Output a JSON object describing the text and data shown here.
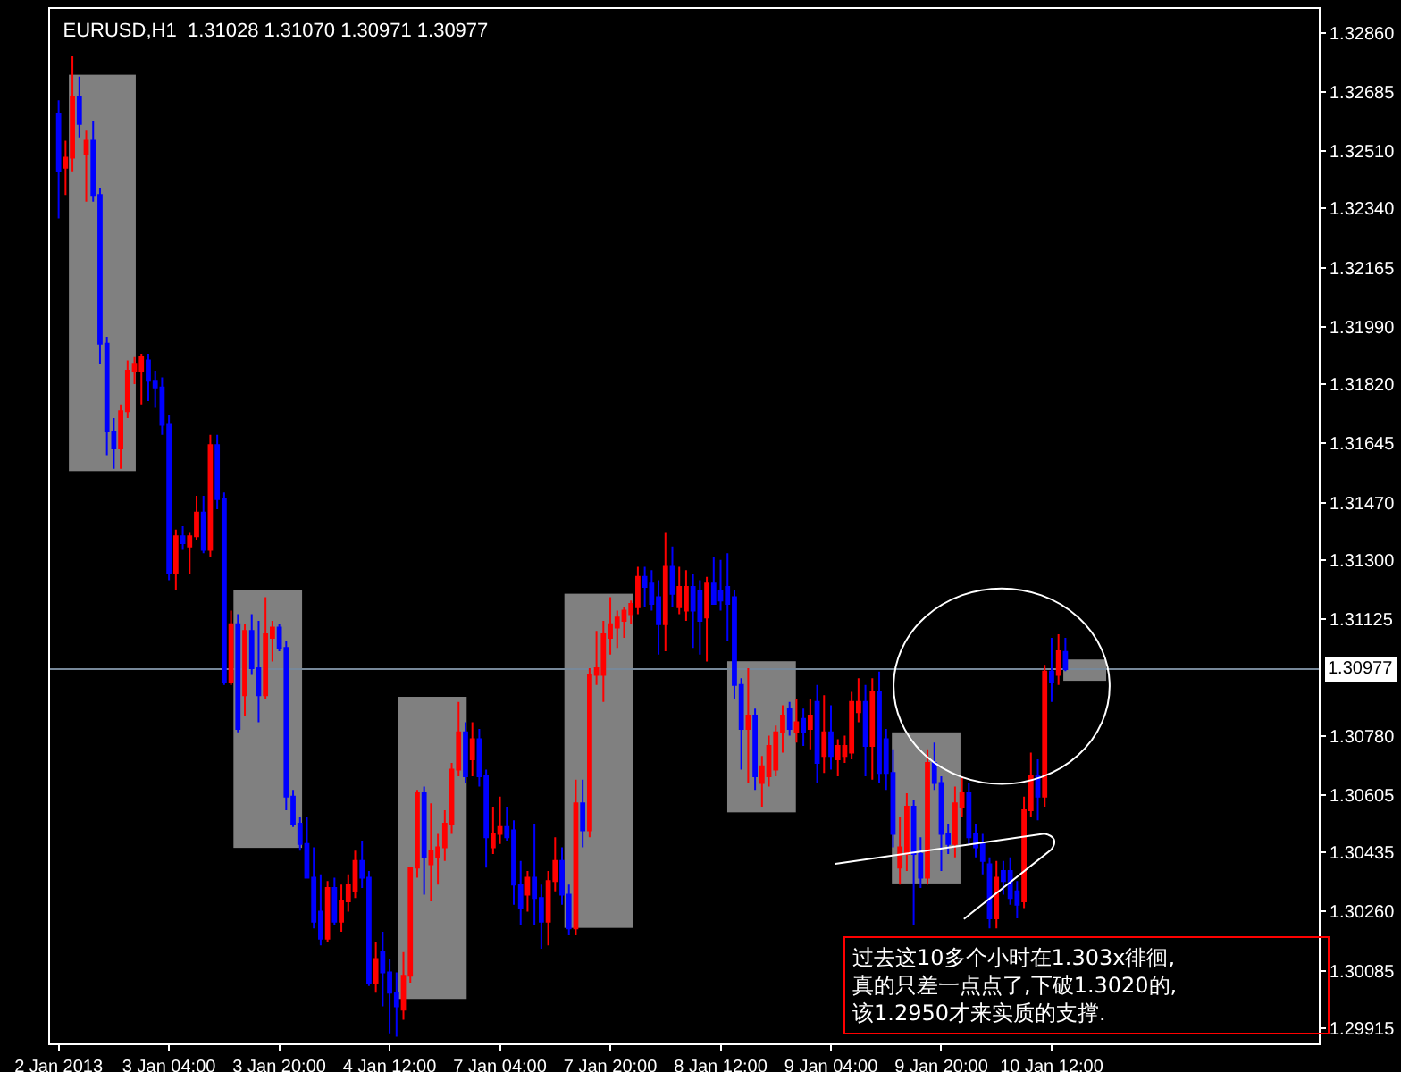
{
  "chart_data": {
    "type": "candlestick",
    "title": "EURUSD,H1  1.31028 1.31070 1.30971 1.30977",
    "categories": [
      "2 Jan 2013",
      null,
      null,
      null,
      null,
      null,
      null,
      null,
      null,
      null,
      null,
      null,
      null,
      null,
      null,
      null,
      "3 Jan 04:00",
      null,
      null,
      null,
      null,
      null,
      null,
      null,
      null,
      null,
      null,
      null,
      null,
      null,
      null,
      null,
      "3 Jan 20:00",
      null,
      null,
      null,
      null,
      null,
      null,
      null,
      null,
      null,
      null,
      null,
      null,
      null,
      null,
      null,
      "4 Jan 12:00",
      null,
      null,
      null,
      null,
      null,
      null,
      null,
      null,
      null,
      null,
      null,
      null,
      null,
      null,
      null,
      "7 Jan 04:00",
      null,
      null,
      null,
      null,
      null,
      null,
      null,
      null,
      null,
      null,
      null,
      null,
      null,
      null,
      null,
      "7 Jan 20:00",
      null,
      null,
      null,
      null,
      null,
      null,
      null,
      null,
      null,
      null,
      null,
      null,
      null,
      null,
      null,
      "8 Jan 12:00",
      null,
      null,
      null,
      null,
      null,
      null,
      null,
      null,
      null,
      null,
      null,
      null,
      null,
      null,
      null,
      "9 Jan 04:00",
      null,
      null,
      null,
      null,
      null,
      null,
      null,
      null,
      null,
      null,
      null,
      null,
      null,
      null,
      null,
      "9 Jan 20:00",
      null,
      null,
      null,
      null,
      null,
      null,
      null,
      null,
      null,
      null,
      null,
      null,
      null,
      null,
      null,
      "10 Jan 12:00",
      null,
      null,
      null,
      null,
      null,
      null,
      null,
      null,
      null,
      null,
      null,
      null,
      null,
      null,
      null,
      null,
      null,
      null,
      null,
      null,
      null,
      null,
      null,
      null,
      null,
      null,
      null,
      null,
      null,
      null,
      null,
      null,
      null,
      null,
      null,
      null,
      null,
      null
    ],
    "ohlc": [
      [
        1.3262,
        1.3266,
        1.3231,
        1.3245
      ],
      [
        1.3246,
        1.3254,
        1.3238,
        1.3249
      ],
      [
        1.3249,
        1.3279,
        1.3245,
        1.3267
      ],
      [
        1.3267,
        1.3273,
        1.3255,
        1.3259
      ],
      [
        1.325,
        1.3257,
        1.3236,
        1.3254
      ],
      [
        1.3254,
        1.326,
        1.3236,
        1.3238
      ],
      [
        1.3238,
        1.324,
        1.3188,
        1.3194
      ],
      [
        1.3194,
        1.3196,
        1.3161,
        1.3168
      ],
      [
        1.3168,
        1.3172,
        1.3157,
        1.3163
      ],
      [
        1.3163,
        1.3176,
        1.3157,
        1.3174
      ],
      [
        1.3174,
        1.3189,
        1.3172,
        1.3186
      ],
      [
        1.3186,
        1.319,
        1.3182,
        1.3188
      ],
      [
        1.3186,
        1.3191,
        1.3176,
        1.319
      ],
      [
        1.3189,
        1.3191,
        1.3177,
        1.3183
      ],
      [
        1.3183,
        1.3186,
        1.3175,
        1.3181
      ],
      [
        1.3181,
        1.3184,
        1.3167,
        1.317
      ],
      [
        1.317,
        1.3173,
        1.3124,
        1.3126
      ],
      [
        1.3126,
        1.3139,
        1.3121,
        1.3137
      ],
      [
        1.3137,
        1.314,
        1.3133,
        1.3135
      ],
      [
        1.3134,
        1.3138,
        1.3126,
        1.3137
      ],
      [
        1.3137,
        1.3149,
        1.3136,
        1.3144
      ],
      [
        1.3144,
        1.3149,
        1.3132,
        1.3133
      ],
      [
        1.3133,
        1.3167,
        1.3131,
        1.3164
      ],
      [
        1.3164,
        1.3167,
        1.3145,
        1.3148
      ],
      [
        1.3148,
        1.315,
        1.3093,
        1.3094
      ],
      [
        1.3094,
        1.3115,
        1.3093,
        1.3111
      ],
      [
        1.3111,
        1.3114,
        1.3079,
        1.308
      ],
      [
        1.309,
        1.3111,
        1.3084,
        1.3109
      ],
      [
        1.3109,
        1.3114,
        1.3096,
        1.3098
      ],
      [
        1.3098,
        1.3112,
        1.3082,
        1.309
      ],
      [
        1.309,
        1.3119,
        1.3089,
        1.3108
      ],
      [
        1.3107,
        1.3112,
        1.31,
        1.311
      ],
      [
        1.311,
        1.3111,
        1.3103,
        1.3104
      ],
      [
        1.3104,
        1.3106,
        1.3056,
        1.306
      ],
      [
        1.306,
        1.3062,
        1.3051,
        1.3052
      ],
      [
        1.3052,
        1.3054,
        1.3044,
        1.3046
      ],
      [
        1.3046,
        1.3054,
        1.3036,
        1.3036
      ],
      [
        1.3036,
        1.3045,
        1.3021,
        1.3023
      ],
      [
        1.3026,
        1.3037,
        1.3016,
        1.3018
      ],
      [
        1.3018,
        1.3035,
        1.3017,
        1.3033
      ],
      [
        1.3033,
        1.3036,
        1.3022,
        1.3023
      ],
      [
        1.3023,
        1.3034,
        1.302,
        1.3029
      ],
      [
        1.3029,
        1.3037,
        1.3026,
        1.3034
      ],
      [
        1.3032,
        1.3044,
        1.303,
        1.3041
      ],
      [
        1.3041,
        1.3047,
        1.3033,
        1.3036
      ],
      [
        1.3036,
        1.3038,
        1.3004,
        1.3005
      ],
      [
        1.3005,
        1.3017,
        1.3002,
        1.3012
      ],
      [
        1.3014,
        1.302,
        1.2998,
        1.3008
      ],
      [
        1.3008,
        1.3012,
        1.299,
        1.3002
      ],
      [
        1.3002,
        1.3008,
        1.2989,
        1.2998
      ],
      [
        1.2997,
        1.3014,
        1.2994,
        1.3007
      ],
      [
        1.3007,
        1.3039,
        1.3005,
        1.3039
      ],
      [
        1.3039,
        1.3062,
        1.3036,
        1.3061
      ],
      [
        1.3061,
        1.3063,
        1.3031,
        1.3042
      ],
      [
        1.304,
        1.3058,
        1.3029,
        1.3044
      ],
      [
        1.3042,
        1.3049,
        1.3034,
        1.3045
      ],
      [
        1.3045,
        1.3056,
        1.3041,
        1.3052
      ],
      [
        1.3052,
        1.307,
        1.3049,
        1.3068
      ],
      [
        1.3068,
        1.3088,
        1.3066,
        1.3079
      ],
      [
        1.3079,
        1.3082,
        1.3064,
        1.3066
      ],
      [
        1.3071,
        1.3082,
        1.3066,
        1.3077
      ],
      [
        1.3077,
        1.308,
        1.3063,
        1.3066
      ],
      [
        1.3066,
        1.3068,
        1.3039,
        1.3048
      ],
      [
        1.3045,
        1.3057,
        1.3043,
        1.3049
      ],
      [
        1.3049,
        1.306,
        1.3046,
        1.3051
      ],
      [
        1.3051,
        1.3057,
        1.3047,
        1.3048
      ],
      [
        1.305,
        1.3053,
        1.3028,
        1.3034
      ],
      [
        1.3034,
        1.3041,
        1.3022,
        1.3027
      ],
      [
        1.3031,
        1.3038,
        1.3026,
        1.3036
      ],
      [
        1.3036,
        1.3052,
        1.3022,
        1.303
      ],
      [
        1.303,
        1.3034,
        1.3015,
        1.3023
      ],
      [
        1.3023,
        1.3038,
        1.3016,
        1.3035
      ],
      [
        1.3035,
        1.3048,
        1.3032,
        1.3041
      ],
      [
        1.3041,
        1.3045,
        1.3028,
        1.3031
      ],
      [
        1.3031,
        1.3034,
        1.3019,
        1.3021
      ],
      [
        1.3021,
        1.3065,
        1.3019,
        1.3058
      ],
      [
        1.3058,
        1.3065,
        1.3045,
        1.305
      ],
      [
        1.305,
        1.3098,
        1.3048,
        1.3096
      ],
      [
        1.3096,
        1.3109,
        1.3093,
        1.3098
      ],
      [
        1.3096,
        1.3112,
        1.3088,
        1.3108
      ],
      [
        1.3107,
        1.3119,
        1.3102,
        1.3111
      ],
      [
        1.311,
        1.3115,
        1.3104,
        1.3113
      ],
      [
        1.3112,
        1.3116,
        1.3107,
        1.3115
      ],
      [
        1.3114,
        1.3118,
        1.3111,
        1.3117
      ],
      [
        1.3116,
        1.3128,
        1.3114,
        1.3125
      ],
      [
        1.3125,
        1.3128,
        1.3116,
        1.3122
      ],
      [
        1.3123,
        1.3127,
        1.3115,
        1.3117
      ],
      [
        1.3119,
        1.3124,
        1.3102,
        1.3111
      ],
      [
        1.3111,
        1.3138,
        1.3103,
        1.3128
      ],
      [
        1.3128,
        1.3134,
        1.3116,
        1.312
      ],
      [
        1.3116,
        1.3128,
        1.3114,
        1.3122
      ],
      [
        1.3115,
        1.3127,
        1.3112,
        1.3122
      ],
      [
        1.3122,
        1.3126,
        1.3104,
        1.3115
      ],
      [
        1.3121,
        1.3124,
        1.3102,
        1.3112
      ],
      [
        1.3113,
        1.3125,
        1.31,
        1.3123
      ],
      [
        1.3123,
        1.3131,
        1.3117,
        1.3117
      ],
      [
        1.3121,
        1.313,
        1.3115,
        1.3118
      ],
      [
        1.3122,
        1.3132,
        1.3106,
        1.3117
      ],
      [
        1.3119,
        1.3121,
        1.3089,
        1.3093
      ],
      [
        1.3093,
        1.3095,
        1.3068,
        1.308
      ],
      [
        1.308,
        1.3098,
        1.3064,
        1.3084
      ],
      [
        1.3084,
        1.3086,
        1.3062,
        1.3066
      ],
      [
        1.3064,
        1.3072,
        1.3057,
        1.3069
      ],
      [
        1.3066,
        1.3078,
        1.3063,
        1.3075
      ],
      [
        1.3068,
        1.3081,
        1.3066,
        1.3079
      ],
      [
        1.3079,
        1.3087,
        1.3073,
        1.3084
      ],
      [
        1.3086,
        1.3088,
        1.3078,
        1.308
      ],
      [
        1.3079,
        1.3089,
        1.3076,
        1.3082
      ],
      [
        1.3083,
        1.3086,
        1.3075,
        1.3079
      ],
      [
        1.308,
        1.3089,
        1.3074,
        1.3084
      ],
      [
        1.3088,
        1.3093,
        1.3064,
        1.307
      ],
      [
        1.3072,
        1.309,
        1.3067,
        1.3079
      ],
      [
        1.3079,
        1.3087,
        1.3068,
        1.3072
      ],
      [
        1.3071,
        1.3077,
        1.3066,
        1.3075
      ],
      [
        1.3072,
        1.3078,
        1.307,
        1.3075
      ],
      [
        1.3073,
        1.3091,
        1.3071,
        1.3088
      ],
      [
        1.3085,
        1.3095,
        1.3082,
        1.3088
      ],
      [
        1.3088,
        1.3093,
        1.3066,
        1.3075
      ],
      [
        1.3075,
        1.3095,
        1.3065,
        1.3091
      ],
      [
        1.3091,
        1.3097,
        1.3064,
        1.3067
      ],
      [
        1.3077,
        1.308,
        1.3062,
        1.3067
      ],
      [
        1.3067,
        1.3074,
        1.3045,
        1.3049
      ],
      [
        1.3039,
        1.3054,
        1.3034,
        1.3045
      ],
      [
        1.3043,
        1.3061,
        1.3038,
        1.3057
      ],
      [
        1.3057,
        1.3059,
        1.3022,
        1.3043
      ],
      [
        1.3043,
        1.3048,
        1.3033,
        1.3036
      ],
      [
        1.3036,
        1.3074,
        1.3034,
        1.307
      ],
      [
        1.307,
        1.3076,
        1.3062,
        1.3064
      ],
      [
        1.3064,
        1.3066,
        1.3038,
        1.3049
      ],
      [
        1.3049,
        1.3052,
        1.3043,
        1.3046
      ],
      [
        1.3046,
        1.3063,
        1.3042,
        1.3058
      ],
      [
        1.3057,
        1.3066,
        1.3054,
        1.3061
      ],
      [
        1.3061,
        1.3064,
        1.3046,
        1.3048
      ],
      [
        1.3049,
        1.3052,
        1.3042,
        1.3045
      ],
      [
        1.3046,
        1.3049,
        1.3037,
        1.3041
      ],
      [
        1.304,
        1.3042,
        1.3021,
        1.3024
      ],
      [
        1.3024,
        1.3041,
        1.3021,
        1.3036
      ],
      [
        1.3038,
        1.3041,
        1.3031,
        1.3035
      ],
      [
        1.3038,
        1.3042,
        1.3028,
        1.303
      ],
      [
        1.3032,
        1.3035,
        1.3024,
        1.3028
      ],
      [
        1.3029,
        1.306,
        1.3027,
        1.3056
      ],
      [
        1.3056,
        1.3073,
        1.3054,
        1.3066
      ],
      [
        1.3066,
        1.3071,
        1.3053,
        1.306
      ],
      [
        1.306,
        1.3099,
        1.3057,
        1.3097
      ],
      [
        1.3097,
        1.3107,
        1.3088,
        1.3094
      ],
      [
        1.3096,
        1.3108,
        1.3093,
        1.3103
      ],
      [
        1.31028,
        1.3107,
        1.30971,
        1.30977
      ],
      null,
      null,
      null,
      null,
      null,
      null,
      null,
      null,
      null,
      null,
      null,
      null,
      null,
      null,
      null,
      null,
      null,
      null,
      null,
      null,
      null,
      null,
      null,
      null,
      null,
      null,
      null,
      null,
      null,
      null,
      null,
      null,
      null,
      null,
      null,
      null
    ],
    "colors": [
      "#0000ff",
      "#ff0000",
      "#ff0000",
      "#0000ff",
      "#ff0000",
      "#0000ff",
      "#0000ff",
      "#0000ff",
      "#0000ff",
      "#ff0000",
      "#ff0000",
      "#ff0000",
      "#ff0000",
      "#0000ff",
      "#0000ff",
      "#0000ff",
      "#0000ff",
      "#ff0000",
      "#0000ff",
      "#ff0000",
      "#ff0000",
      "#0000ff",
      "#ff0000",
      "#0000ff",
      "#0000ff",
      "#ff0000",
      "#0000ff",
      "#ff0000",
      "#0000ff",
      "#0000ff",
      "#ff0000",
      "#ff0000",
      "#0000ff",
      "#0000ff",
      "#0000ff",
      "#0000ff",
      "#0000ff",
      "#0000ff",
      "#0000ff",
      "#ff0000",
      "#0000ff",
      "#ff0000",
      "#ff0000",
      "#ff0000",
      "#0000ff",
      "#0000ff",
      "#ff0000",
      "#0000ff",
      "#0000ff",
      "#0000ff",
      "#ff0000",
      "#ff0000",
      "#ff0000",
      "#0000ff",
      "#ff0000",
      "#ff0000",
      "#ff0000",
      "#ff0000",
      "#ff0000",
      "#0000ff",
      "#ff0000",
      "#0000ff",
      "#0000ff",
      "#ff0000",
      "#ff0000",
      "#0000ff",
      "#0000ff",
      "#0000ff",
      "#ff0000",
      "#0000ff",
      "#0000ff",
      "#ff0000",
      "#ff0000",
      "#0000ff",
      "#0000ff",
      "#ff0000",
      "#0000ff",
      "#ff0000",
      "#ff0000",
      "#ff0000",
      "#ff0000",
      "#ff0000",
      "#ff0000",
      "#ff0000",
      "#ff0000",
      "#0000ff",
      "#0000ff",
      "#0000ff",
      "#ff0000",
      "#0000ff",
      "#ff0000",
      "#ff0000",
      "#0000ff",
      "#0000ff",
      "#ff0000",
      "#0000ff",
      "#0000ff",
      "#0000ff",
      "#0000ff",
      "#0000ff",
      "#ff0000",
      "#0000ff",
      "#ff0000",
      "#ff0000",
      "#ff0000",
      "#ff0000",
      "#0000ff",
      "#ff0000",
      "#0000ff",
      "#ff0000",
      "#0000ff",
      "#ff0000",
      "#0000ff",
      "#ff0000",
      "#ff0000",
      "#ff0000",
      "#ff0000",
      "#0000ff",
      "#ff0000",
      "#0000ff",
      "#0000ff",
      "#0000ff",
      "#ff0000",
      "#ff0000",
      "#0000ff",
      "#0000ff",
      "#ff0000",
      "#0000ff",
      "#0000ff",
      "#0000ff",
      "#ff0000",
      "#ff0000",
      "#0000ff",
      "#0000ff",
      "#0000ff",
      "#0000ff",
      "#ff0000",
      "#0000ff",
      "#0000ff",
      "#0000ff",
      "#ff0000",
      "#ff0000",
      "#0000ff",
      "#ff0000",
      "#0000ff",
      "#ff0000",
      "#0000ff",
      null,
      null,
      null,
      null,
      null,
      null,
      null,
      null,
      null,
      null,
      null,
      null,
      null,
      null,
      null,
      null,
      null,
      null,
      null,
      null,
      null,
      null,
      null,
      null,
      null,
      null,
      null,
      null,
      null,
      null,
      null,
      null,
      null,
      null,
      null,
      null
    ],
    "ylim": [
      1.2987,
      1.3293
    ],
    "yticks": [
      {
        "value": 1.3286,
        "label": "1.32860"
      },
      1.32685,
      {
        "value": 1.3251,
        "label": "1.32510"
      },
      {
        "value": 1.3234,
        "label": "1.32340"
      },
      1.32165,
      {
        "value": 1.3199,
        "label": "1.31990"
      },
      {
        "value": 1.3182,
        "label": "1.31820"
      },
      1.31645,
      {
        "value": 1.3147,
        "label": "1.31470"
      },
      {
        "value": 1.313,
        "label": "1.31300"
      },
      1.31125,
      {
        "value": 1.3078,
        "label": "1.30780"
      },
      1.30605,
      1.30435,
      {
        "value": 1.3026,
        "label": "1.30260"
      },
      1.30085,
      1.29915
    ],
    "ref_lines": [
      {
        "axis": "y",
        "value": 1.30977,
        "label": "1.30977",
        "color": "#778899"
      }
    ],
    "annotations": [
      "过去这10多个小时在1.303x徘徊,\n真的只差一点点了,下破1.3020的,\n该1.2950才来实质的支撑."
    ],
    "grid": false
  }
}
